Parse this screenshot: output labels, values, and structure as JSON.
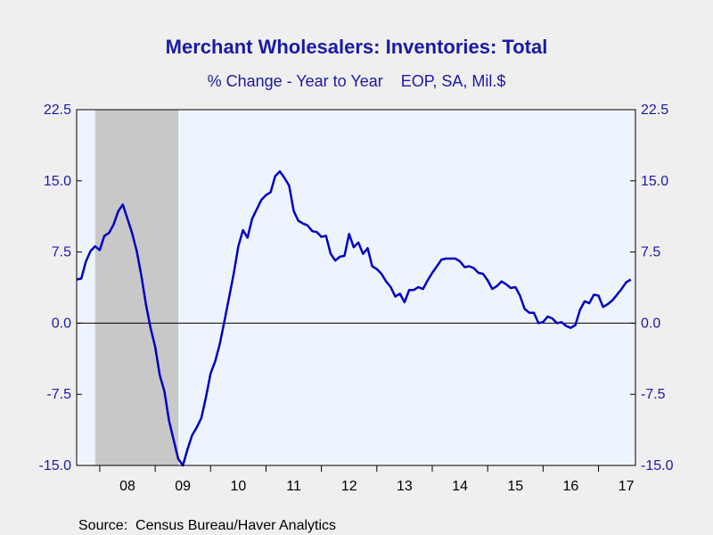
{
  "chart_data": {
    "type": "line",
    "title": "Merchant Wholesalers: Inventories: Total",
    "subtitle": "% Change - Year to Year    EOP, SA, Mil.$",
    "source": "Source:  Census Bureau/Haver Analytics",
    "xlabel": "",
    "ylabel": "",
    "ylim": [
      -15.0,
      22.5
    ],
    "xlim": [
      2007.583,
      2017.667
    ],
    "y_ticks": [
      "22.5",
      "15.0",
      "7.5",
      "0.0",
      "-7.5",
      "-15.0"
    ],
    "y_tick_values": [
      22.5,
      15.0,
      7.5,
      0.0,
      -7.5,
      -15.0
    ],
    "x_ticks": [
      "08",
      "09",
      "10",
      "11",
      "12",
      "13",
      "14",
      "15",
      "16",
      "17"
    ],
    "x_tick_values": [
      2008.5,
      2009.5,
      2010.5,
      2011.5,
      2012.5,
      2013.5,
      2014.5,
      2015.5,
      2016.5,
      2017.5
    ],
    "grid": false,
    "zero_line": true,
    "dual_y_axis": true,
    "recession_shading": [
      2007.917,
      2009.417
    ],
    "colors": {
      "line": "#0000c0",
      "plot_background": "#eef4fd",
      "recession": "#c8c8c8",
      "text_accent": "#1a1aa6",
      "page_background": "#efefef"
    },
    "series": [
      {
        "start": "2007-08",
        "frequency": "monthly",
        "values": [
          4.6,
          4.7,
          6.5,
          7.6,
          8.1,
          7.7,
          9.2,
          9.5,
          10.4,
          11.8,
          12.5,
          11.0,
          9.5,
          7.6,
          5.0,
          2.0,
          -0.5,
          -2.5,
          -5.5,
          -7.2,
          -10.3,
          -12.3,
          -14.3,
          -15.0,
          -13.3,
          -11.8,
          -11.0,
          -10.0,
          -7.8,
          -5.3,
          -4.0,
          -2.2,
          0.2,
          2.7,
          5.2,
          8.1,
          9.8,
          9.0,
          11.0,
          12.0,
          13.0,
          13.5,
          13.8,
          15.5,
          16.0,
          15.3,
          14.5,
          11.8,
          10.8,
          10.5,
          10.3,
          9.7,
          9.6,
          9.1,
          9.2,
          7.3,
          6.6,
          7.0,
          7.1,
          9.4,
          8.0,
          8.5,
          7.3,
          7.9,
          6.0,
          5.7,
          5.2,
          4.4,
          3.8,
          2.8,
          3.1,
          2.2,
          3.5,
          3.5,
          3.8,
          3.6,
          4.5,
          5.3,
          6.0,
          6.7,
          6.8,
          6.8,
          6.8,
          6.5,
          5.9,
          6.0,
          5.8,
          5.3,
          5.2,
          4.5,
          3.6,
          3.9,
          4.4,
          4.1,
          3.7,
          3.8,
          2.9,
          1.5,
          1.1,
          1.1,
          0.0,
          0.1,
          0.7,
          0.5,
          0.0,
          0.1,
          -0.3,
          -0.5,
          -0.2,
          1.4,
          2.3,
          2.1,
          3.0,
          2.9,
          1.7,
          2.0,
          2.4,
          3.0,
          3.6,
          4.3,
          4.6
        ]
      }
    ]
  }
}
